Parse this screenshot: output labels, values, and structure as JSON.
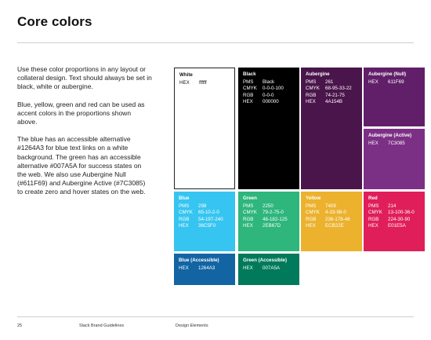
{
  "title": "Core colors",
  "paragraphs": [
    "Use these color proportions in any layout or collateral design. Text should always be set in black, white or aubergine.",
    "Blue, yellow, green and red can be used as accent colors in the proportions shown above.",
    "The blue has an accessible alternative #1264A3 for blue text links on a white background. The green has an accessible alternative #007A5A for success states on the web. We also use Aubergine Null (#611F69) and Aubergine Active (#7C3085) to create zero and hover states on the web."
  ],
  "swatches": {
    "white": {
      "name": "White",
      "color": "#ffffff",
      "hex_label": "HEX",
      "hex": "ffffff"
    },
    "black": {
      "name": "Black",
      "color": "#000000",
      "pms_label": "PMS",
      "pms": "Black",
      "cmyk_label": "CMYK",
      "cmyk": "0-0-0-100",
      "rgb_label": "RGB",
      "rgb": "0-0-0",
      "hex_label": "HEX",
      "hex": "000000"
    },
    "aubergine": {
      "name": "Aubergine",
      "color": "#4A154B",
      "pms_label": "PMS",
      "pms": "261",
      "cmyk_label": "CMYK",
      "cmyk": "68-95-33-22",
      "rgb_label": "RGB",
      "rgb": "74-21-75",
      "hex_label": "HEX",
      "hex": "4A154B"
    },
    "aubergine_null": {
      "name": "Aubergine (Null)",
      "color": "#611F69",
      "hex_label": "HEX",
      "hex": "611F69"
    },
    "aubergine_active": {
      "name": "Aubergine (Active)",
      "color": "#7C3085",
      "hex_label": "HEX",
      "hex": "7C3085"
    },
    "blue": {
      "name": "Blue",
      "color": "#36C5F0",
      "pms_label": "PMS",
      "pms": "298",
      "cmyk_label": "CMYK",
      "cmyk": "65-10-2-0",
      "rgb_label": "RGB",
      "rgb": "54-197-240",
      "hex_label": "HEX",
      "hex": "36C5F0"
    },
    "green": {
      "name": "Green",
      "color": "#2EB67D",
      "pms_label": "PMS",
      "pms": "2250",
      "cmyk_label": "CMYK",
      "cmyk": "79-2-75-0",
      "rgb_label": "RGB",
      "rgb": "46-182-125",
      "hex_label": "HEX",
      "hex": "2EB67D"
    },
    "yellow": {
      "name": "Yellow",
      "color": "#ECB22E",
      "pms_label": "PMS",
      "pms": "7409",
      "cmyk_label": "CMYK",
      "cmyk": "4-33-98-0",
      "rgb_label": "RGB",
      "rgb": "236-178-46",
      "hex_label": "HEX",
      "hex": "ECB22E"
    },
    "red": {
      "name": "Red",
      "color": "#E01E5A",
      "pms_label": "PMS",
      "pms": "214",
      "cmyk_label": "CMYK",
      "cmyk": "13-100-36-0",
      "rgb_label": "RGB",
      "rgb": "224-30-90",
      "hex_label": "HEX",
      "hex": "E01E5A"
    },
    "blue_accessible": {
      "name": "Blue (Accessible)",
      "color": "#1264A3",
      "hex_label": "HEX",
      "hex": "1264A3"
    },
    "green_accessible": {
      "name": "Green (Accessible)",
      "color": "#007A5A",
      "hex_label": "HEX",
      "hex": "007A5A"
    }
  },
  "footer": {
    "page_number": "25",
    "document_title": "Slack Brand Guidelines",
    "section": "Design Elements"
  }
}
